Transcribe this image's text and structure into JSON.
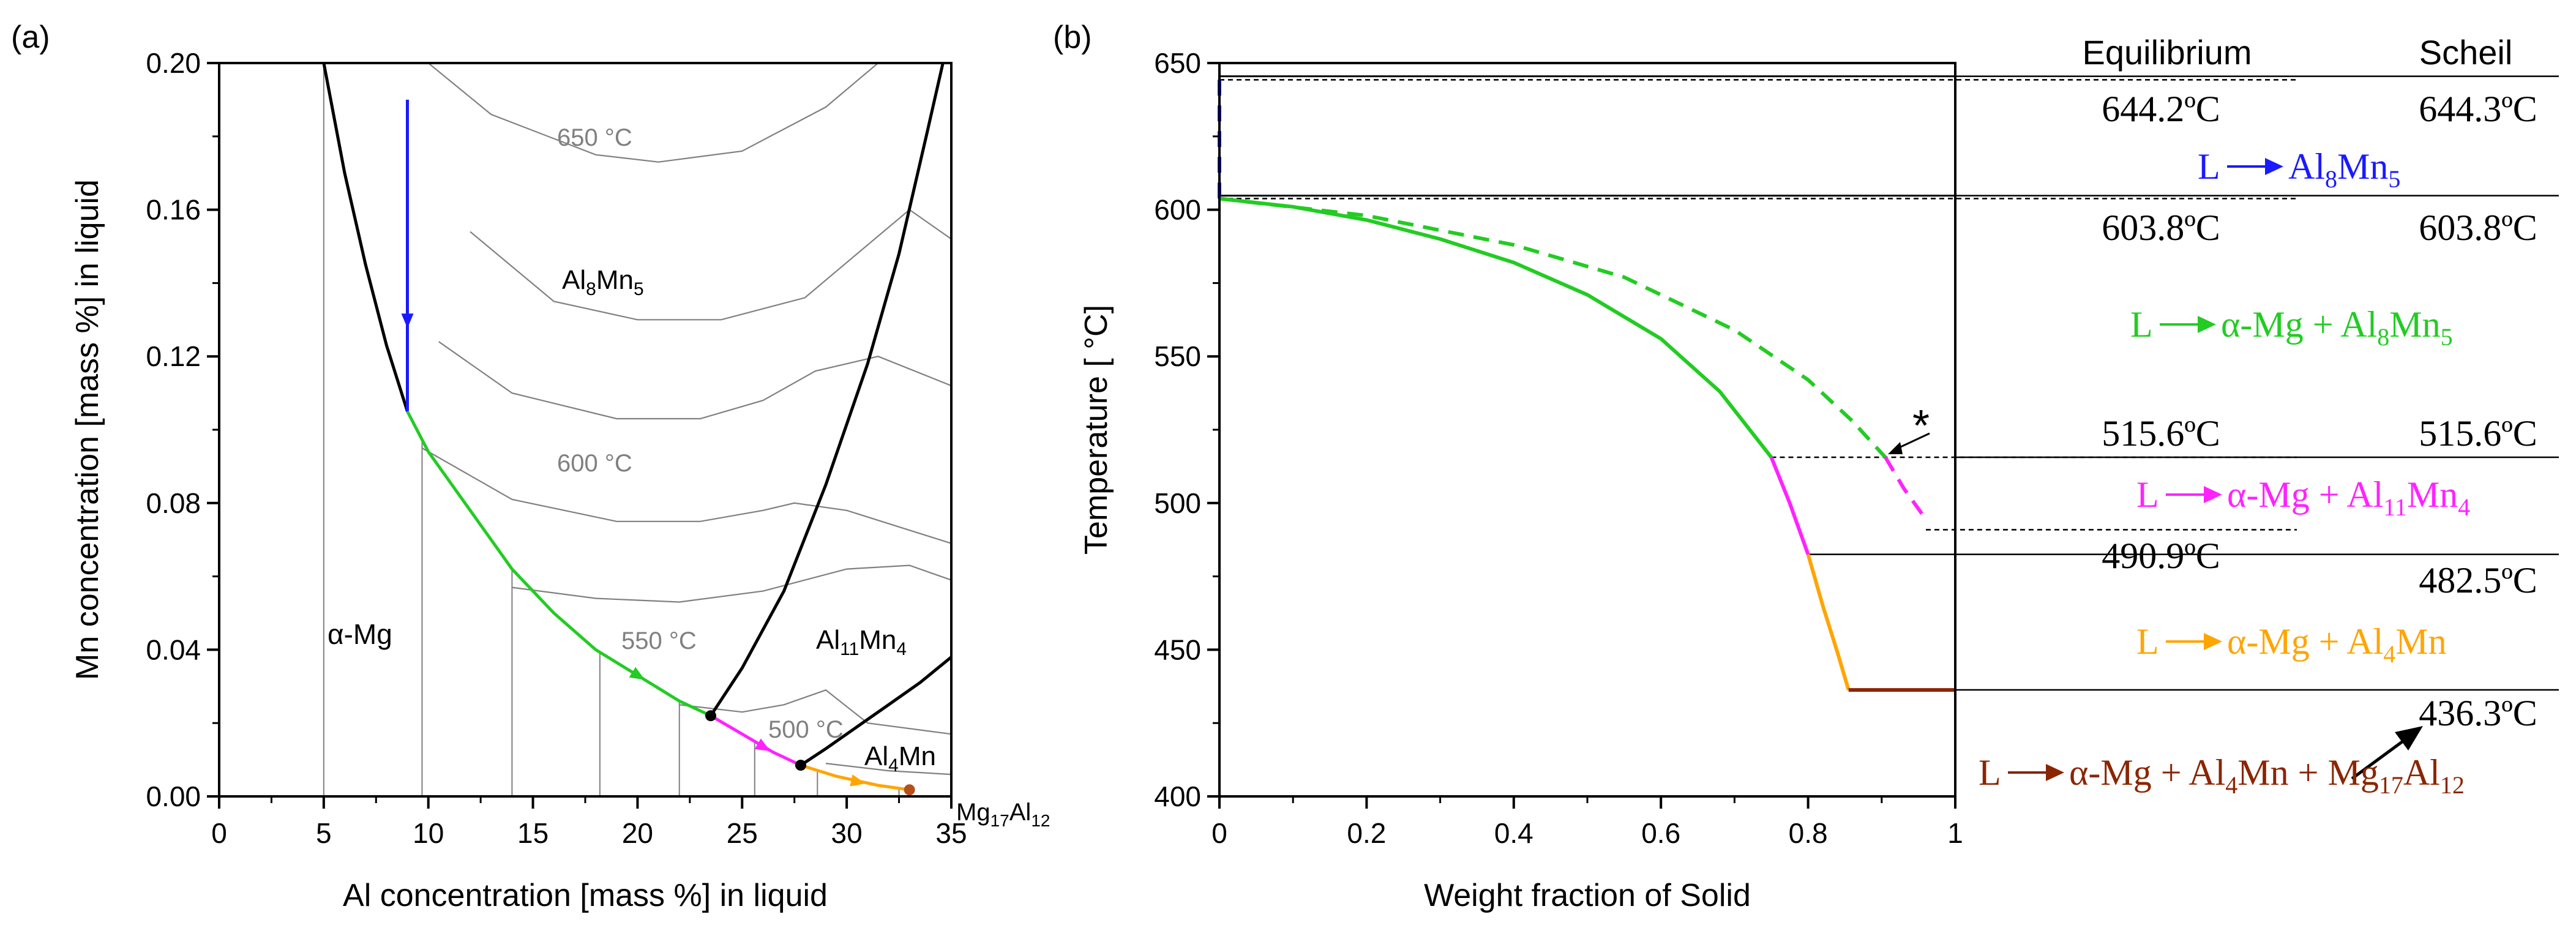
{
  "chart_data": [
    {
      "panel": "(a)",
      "type": "line",
      "xlabel": "Al concentration [mass %] in liquid",
      "ylabel": "Mn concentration [mass %] in liquid",
      "xlim": [
        0,
        35
      ],
      "ylim": [
        0,
        0.2
      ],
      "xticks": [
        "0",
        "5",
        "10",
        "15",
        "20",
        "25",
        "30",
        "35"
      ],
      "yticks": [
        "0.00",
        "0.04",
        "0.08",
        "0.12",
        "0.16",
        "0.20"
      ],
      "grid": false,
      "region_labels": {
        "amg": "α-Mg",
        "al8mn5": {
          "base": "Al",
          "s1": "8",
          "mid": "Mn",
          "s2": "5"
        },
        "al11mn4": {
          "base": "Al",
          "s1": "11",
          "mid": "Mn",
          "s2": "4"
        },
        "al4mn": {
          "base": "Al",
          "s1": "4",
          "mid": "Mn",
          "s2": ""
        },
        "mg17al12": {
          "base": "Mg",
          "s1": "17",
          "mid": "Al",
          "s2": "12"
        }
      },
      "isotherm_labels": [
        "650 °C",
        "600 °C",
        "550 °C",
        "500 °C"
      ],
      "boundaries": [
        {
          "name": "alphaMg-Al8Mn5",
          "color": "#000000",
          "points": [
            [
              5,
              0.2
            ],
            [
              6,
              0.17
            ],
            [
              7,
              0.145
            ],
            [
              8,
              0.123
            ],
            [
              9,
              0.105
            ]
          ]
        },
        {
          "name": "Al8Mn5-Al11Mn4",
          "color": "#000000",
          "points": [
            [
              23.5,
              0.022
            ],
            [
              25,
              0.035
            ],
            [
              27,
              0.056
            ],
            [
              29,
              0.085
            ],
            [
              31,
              0.118
            ],
            [
              32.5,
              0.148
            ],
            [
              33.8,
              0.18
            ],
            [
              34.6,
              0.2
            ]
          ]
        },
        {
          "name": "Al11Mn4-Al4Mn",
          "color": "#000000",
          "points": [
            [
              27.8,
              0.0085
            ],
            [
              29,
              0.013
            ],
            [
              30.5,
              0.019
            ],
            [
              32,
              0.025
            ],
            [
              33.5,
              0.031
            ],
            [
              35,
              0.038
            ]
          ]
        }
      ],
      "isotherms": [
        {
          "label": "650 °C",
          "points": [
            [
              10,
              0.2
            ],
            [
              13,
              0.186
            ],
            [
              18,
              0.175
            ],
            [
              21,
              0.173
            ],
            [
              25,
              0.176
            ],
            [
              29,
              0.188
            ],
            [
              31.5,
              0.2
            ]
          ]
        },
        {
          "label": "600 °C",
          "points": [
            [
              9.7,
              0.095
            ],
            [
              14,
              0.081
            ],
            [
              19,
              0.075
            ],
            [
              23,
              0.075
            ],
            [
              26,
              0.078
            ],
            [
              27.5,
              0.08
            ],
            [
              30,
              0.078
            ],
            [
              35,
              0.069
            ]
          ]
        },
        {
          "label": "550 °C",
          "points": [
            [
              14,
              0.057
            ],
            [
              18,
              0.054
            ],
            [
              22,
              0.053
            ],
            [
              26,
              0.056
            ],
            [
              30,
              0.062
            ],
            [
              33,
              0.063
            ],
            [
              35,
              0.059
            ]
          ]
        },
        {
          "label": "500 °C",
          "points": [
            [
              22,
              0.025
            ],
            [
              25,
              0.023
            ],
            [
              27,
              0.025
            ],
            [
              29,
              0.029
            ],
            [
              31,
              0.02
            ],
            [
              35,
              0.017
            ]
          ]
        },
        {
          "label": "",
          "points": [
            [
              12,
              0.154
            ],
            [
              16,
              0.135
            ],
            [
              20,
              0.13
            ],
            [
              24,
              0.13
            ],
            [
              28,
              0.136
            ],
            [
              30.5,
              0.148
            ],
            [
              33,
              0.16
            ],
            [
              35,
              0.152
            ]
          ]
        },
        {
          "label": "",
          "points": [
            [
              10.5,
              0.124
            ],
            [
              14,
              0.11
            ],
            [
              19,
              0.103
            ],
            [
              23,
              0.103
            ],
            [
              26,
              0.108
            ],
            [
              28.5,
              0.116
            ],
            [
              31.5,
              0.12
            ],
            [
              35,
              0.112
            ]
          ]
        },
        {
          "label": "",
          "points": [
            [
              29,
              0.009
            ],
            [
              32,
              0.007
            ],
            [
              35,
              0.006
            ]
          ]
        }
      ],
      "vertical_lines": [
        5,
        9.7,
        14,
        18.2,
        22,
        25.6,
        28.6,
        32.5
      ],
      "series": [
        {
          "name": "",
          "color": "#1a1aff",
          "points": [
            [
              9,
              0.19
            ],
            [
              9,
              0.105
            ]
          ],
          "arrow_at": [
            9,
            0.13
          ]
        },
        {
          "name": "",
          "color": "#22cc22",
          "points": [
            [
              9,
              0.105
            ],
            [
              10,
              0.094
            ],
            [
              12,
              0.078
            ],
            [
              14,
              0.062
            ],
            [
              16,
              0.05
            ],
            [
              18,
              0.04
            ],
            [
              20,
              0.033
            ],
            [
              22,
              0.026
            ],
            [
              23.5,
              0.022
            ]
          ],
          "arrow_at": [
            20,
            0.033
          ]
        },
        {
          "name": "",
          "color": "#ff22ff",
          "points": [
            [
              23.5,
              0.022
            ],
            [
              25,
              0.017
            ],
            [
              26.5,
              0.012
            ],
            [
              27.8,
              0.0085
            ]
          ],
          "arrow_at": [
            26,
            0.0135
          ]
        },
        {
          "name": "",
          "color": "#ffa500",
          "points": [
            [
              27.8,
              0.0085
            ],
            [
              29.5,
              0.0055
            ],
            [
              31.5,
              0.003
            ],
            [
              33,
              0.0018
            ]
          ],
          "arrow_at": [
            30.5,
            0.004
          ]
        }
      ],
      "markers": [
        {
          "x": 23.5,
          "y": 0.022,
          "color": "#000000"
        },
        {
          "x": 27.8,
          "y": 0.0085,
          "color": "#000000"
        },
        {
          "x": 33,
          "y": 0.0018,
          "color": "#b5501a"
        }
      ]
    },
    {
      "panel": "(b)",
      "type": "line",
      "xlabel": "Weight fraction of Solid",
      "ylabel": "Temperature [  °C]",
      "xlim": [
        0,
        1
      ],
      "ylim": [
        400,
        650
      ],
      "xticks": [
        "0",
        "0.2",
        "0.4",
        "0.6",
        "0.8",
        "1"
      ],
      "yticks": [
        "400",
        "450",
        "500",
        "550",
        "600",
        "650"
      ],
      "grid": false,
      "column_headers": [
        "Equilibrium",
        "Scheil"
      ],
      "temperatures": {
        "eq_644": "644.2ºC",
        "sch_644": "644.3ºC",
        "eq_603": "603.8ºC",
        "sch_603": "603.8ºC",
        "eq_515": "515.6ºC",
        "sch_515": "515.6ºC",
        "eq_490": "490.9ºC",
        "sch_482": "482.5ºC",
        "eut_436": "436.3ºC"
      },
      "reaction_labels": [
        {
          "color": "#1a1aff",
          "lhs": "L",
          "parts": [
            {
              "t": "Al"
            },
            {
              "t": "8",
              "sub": true
            },
            {
              "t": "Mn"
            },
            {
              "t": "5",
              "sub": true
            }
          ]
        },
        {
          "color": "#22cc22",
          "lhs": "L",
          "parts": [
            {
              "t": "α-Mg + Al"
            },
            {
              "t": "8",
              "sub": true
            },
            {
              "t": "Mn"
            },
            {
              "t": "5",
              "sub": true
            }
          ]
        },
        {
          "color": "#ff22ff",
          "lhs": "L",
          "parts": [
            {
              "t": "α-Mg + Al"
            },
            {
              "t": "11",
              "sub": true
            },
            {
              "t": "Mn"
            },
            {
              "t": "4",
              "sub": true
            }
          ]
        },
        {
          "color": "#ffa500",
          "lhs": "L",
          "parts": [
            {
              "t": "α-Mg + Al"
            },
            {
              "t": "4",
              "sub": true
            },
            {
              "t": "Mn"
            }
          ]
        },
        {
          "color": "#8b2500",
          "lhs": "L",
          "parts": [
            {
              "t": "α-Mg + Al"
            },
            {
              "t": "4",
              "sub": true
            },
            {
              "t": "Mn + Mg"
            },
            {
              "t": "17",
              "sub": true
            },
            {
              "t": "Al"
            },
            {
              "t": "12",
              "sub": true
            }
          ]
        }
      ],
      "annotation": "*",
      "series": [
        {
          "name": "",
          "color": "#1a1aff",
          "dashed": true,
          "points": [
            [
              0,
              644.3
            ],
            [
              0,
              603.8
            ]
          ]
        },
        {
          "name": "",
          "color": "#22cc22",
          "dashed": false,
          "points": [
            [
              0,
              603.8
            ],
            [
              0.1,
              601
            ],
            [
              0.2,
              596.5
            ],
            [
              0.3,
              590
            ],
            [
              0.4,
              582
            ],
            [
              0.5,
              571
            ],
            [
              0.6,
              556
            ],
            [
              0.68,
              538
            ],
            [
              0.75,
              515.6
            ]
          ]
        },
        {
          "name": "",
          "color": "#ff22ff",
          "dashed": false,
          "points": [
            [
              0.75,
              515.6
            ],
            [
              0.775,
              500
            ],
            [
              0.8,
              482.5
            ]
          ]
        },
        {
          "name": "",
          "color": "#ffa500",
          "dashed": false,
          "points": [
            [
              0.8,
              482.5
            ],
            [
              0.82,
              465
            ],
            [
              0.84,
              449
            ],
            [
              0.855,
              436.3
            ]
          ]
        },
        {
          "name": "",
          "color": "#8b2500",
          "dashed": false,
          "points": [
            [
              0.855,
              436.3
            ],
            [
              1.0,
              436.3
            ]
          ]
        },
        {
          "name": "",
          "color": "#22cc22",
          "dashed": true,
          "points": [
            [
              0,
              603.8
            ],
            [
              0.2,
              598
            ],
            [
              0.4,
              588
            ],
            [
              0.55,
              577
            ],
            [
              0.7,
              559
            ],
            [
              0.8,
              542
            ],
            [
              0.86,
              528
            ],
            [
              0.905,
              515.6
            ]
          ]
        },
        {
          "name": "",
          "color": "#ff22ff",
          "dashed": true,
          "points": [
            [
              0.905,
              515.6
            ],
            [
              0.93,
              505
            ],
            [
              0.96,
              494.5
            ]
          ]
        }
      ]
    }
  ]
}
